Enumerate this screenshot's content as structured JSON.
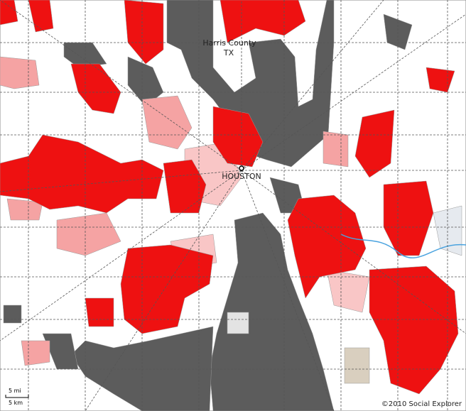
{
  "labels": {
    "county": "Harris County",
    "state": "TX",
    "city": "HOUSTON"
  },
  "scale": {
    "miles": "5 mi",
    "km": "5 km"
  },
  "copyright": "©2010 Social Explorer"
}
